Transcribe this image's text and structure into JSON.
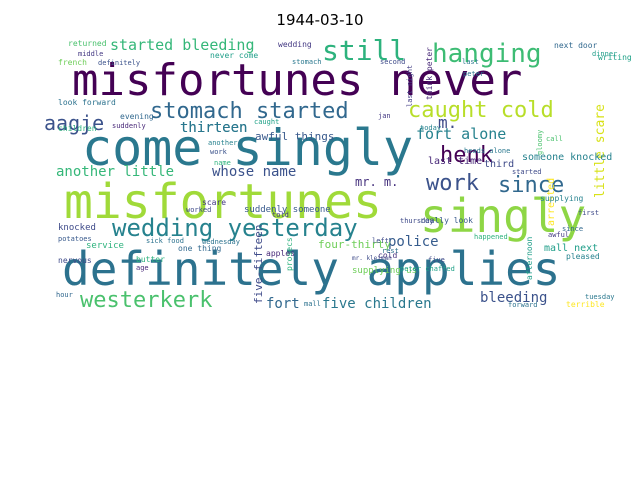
{
  "title": "1944-03-10",
  "palette": {
    "dark_purple": "#440154",
    "indigo": "#46327e",
    "blue": "#365c8d",
    "teal": "#277f8e",
    "green": "#1fa187",
    "lime": "#4ac16d",
    "yellow_green": "#a0da39",
    "yellow": "#fde725"
  },
  "words": [
    {
      "text": "misfortunes never",
      "color": "#440154"
    },
    {
      "text": "come singly",
      "color": "#2a788e"
    },
    {
      "text": "misfortunes",
      "color": "#a0da39"
    },
    {
      "text": "singly",
      "color": "#8ed645"
    },
    {
      "text": "definitely applies",
      "color": "#2c728e"
    },
    {
      "text": "still",
      "color": "#2db27d"
    },
    {
      "text": "hanging",
      "color": "#3dbc74"
    },
    {
      "text": "stomach started",
      "color": "#31688e"
    },
    {
      "text": "caught cold",
      "color": "#b8de29"
    },
    {
      "text": "aagje",
      "color": "#3b528b"
    },
    {
      "text": "henk",
      "color": "#440154"
    },
    {
      "text": "m.",
      "color": "#3e4a89"
    },
    {
      "text": "work",
      "color": "#3b528b"
    },
    {
      "text": "since",
      "color": "#31688e"
    },
    {
      "text": "wedding yesterday",
      "color": "#26828e"
    },
    {
      "text": "westerkerk",
      "color": "#4ac16d"
    },
    {
      "text": "bleeding",
      "color": "#3b528b"
    },
    {
      "text": "started bleeding",
      "color": "#35b779"
    },
    {
      "text": "thirteen",
      "color": "#2a788e"
    },
    {
      "text": "fort alone",
      "color": "#26828e"
    },
    {
      "text": "another little",
      "color": "#35b779"
    },
    {
      "text": "whose name",
      "color": "#3b528b"
    },
    {
      "text": "mr. m.",
      "color": "#46327e"
    },
    {
      "text": "police",
      "color": "#365c8d"
    },
    {
      "text": "fort",
      "color": "#31688e"
    },
    {
      "text": "five children",
      "color": "#2a788e"
    },
    {
      "text": "little scare",
      "color": "#d8e219"
    },
    {
      "text": "someone knocked",
      "color": "#26828e"
    },
    {
      "text": "last time",
      "color": "#482878"
    },
    {
      "text": "third",
      "color": "#3e4a89"
    },
    {
      "text": "awful things",
      "color": "#38598c"
    },
    {
      "text": "five-fifteen",
      "color": "#3e4a89"
    },
    {
      "text": "four-thirty",
      "color": "#6ece58"
    },
    {
      "text": "mall next",
      "color": "#1f9e89"
    },
    {
      "text": "arrested",
      "color": "#fde725"
    },
    {
      "text": "knocked",
      "color": "#3e4a89"
    },
    {
      "text": "service",
      "color": "#2db27d"
    },
    {
      "text": "evening",
      "color": "#31688e"
    },
    {
      "text": "thirteen",
      "color": "#2a788e"
    },
    {
      "text": "returned",
      "color": "#4ac16d"
    },
    {
      "text": "wedding",
      "color": "#443983"
    },
    {
      "text": "next door",
      "color": "#31688e"
    },
    {
      "text": "writing",
      "color": "#1fa187"
    },
    {
      "text": "look forward",
      "color": "#2c728e"
    },
    {
      "text": "suddenly",
      "color": "#482878"
    },
    {
      "text": "children",
      "color": "#2db27d"
    },
    {
      "text": "definitely",
      "color": "#3b528b"
    },
    {
      "text": "french",
      "color": "#6ece58"
    },
    {
      "text": "middle",
      "color": "#443983"
    },
    {
      "text": "never come",
      "color": "#1f9e89"
    },
    {
      "text": "stomach",
      "color": "#2a788e"
    },
    {
      "text": "second",
      "color": "#3e4a89"
    },
    {
      "text": "think peter",
      "color": "#482878"
    },
    {
      "text": "last night",
      "color": "#433e85"
    },
    {
      "text": "peter",
      "color": "#2c728e"
    },
    {
      "text": "nervous",
      "color": "#3e4a89"
    },
    {
      "text": "caught",
      "color": "#1fa187"
    },
    {
      "text": "another",
      "color": "#26828e"
    },
    {
      "text": "work",
      "color": "#3b528b"
    },
    {
      "text": "name",
      "color": "#2db27d"
    },
    {
      "text": "suddenly someone",
      "color": "#38598c"
    },
    {
      "text": "cold",
      "color": "#46327e"
    },
    {
      "text": "worked",
      "color": "#3e4a89"
    },
    {
      "text": "scare",
      "color": "#443983"
    },
    {
      "text": "butter",
      "color": "#2db27d"
    },
    {
      "text": "sick food",
      "color": "#2c728e"
    },
    {
      "text": "one thing",
      "color": "#31688e"
    },
    {
      "text": "wednesday",
      "color": "#2c728e"
    },
    {
      "text": "apples",
      "color": "#482878"
    },
    {
      "text": "supplying us",
      "color": "#6ece58"
    },
    {
      "text": "five",
      "color": "#3e4a89"
    },
    {
      "text": "prosecs",
      "color": "#2db27d"
    },
    {
      "text": "tuesday",
      "color": "#2a788e"
    },
    {
      "text": "first",
      "color": "#3e4a89"
    },
    {
      "text": "pleased",
      "color": "#26828e"
    },
    {
      "text": "afternoon",
      "color": "#1f9e89"
    },
    {
      "text": "awful",
      "color": "#443983"
    },
    {
      "text": "terrible",
      "color": "#fde725"
    },
    {
      "text": "forward",
      "color": "#2c728e"
    },
    {
      "text": "really look",
      "color": "#38598c"
    },
    {
      "text": "thursday",
      "color": "#3e4a89"
    },
    {
      "text": "gloomy",
      "color": "#4ac16d"
    },
    {
      "text": "supplying",
      "color": "#26828e"
    },
    {
      "text": "happened",
      "color": "#2db27d"
    },
    {
      "text": "started",
      "color": "#3e4a89"
    },
    {
      "text": "heads alone",
      "color": "#2a788e"
    },
    {
      "text": "told",
      "color": "#443983"
    },
    {
      "text": "potatoes",
      "color": "#38598c"
    },
    {
      "text": "hour",
      "color": "#31688e"
    },
    {
      "text": "age",
      "color": "#482878"
    },
    {
      "text": "left",
      "color": "#3e4a89"
    },
    {
      "text": "rest",
      "color": "#2c728e"
    },
    {
      "text": "dinner",
      "color": "#1f9e89"
    },
    {
      "text": "call",
      "color": "#4ac16d"
    },
    {
      "text": "today",
      "color": "#26828e"
    },
    {
      "text": "mr. kleiman",
      "color": "#3e4a89"
    },
    {
      "text": "peter chaffed",
      "color": "#1fa187"
    },
    {
      "text": "since",
      "color": "#31688e"
    },
    {
      "text": "jan",
      "color": "#443983"
    },
    {
      "text": "mall",
      "color": "#2c728e"
    },
    {
      "text": "last",
      "color": "#2a788e"
    }
  ]
}
